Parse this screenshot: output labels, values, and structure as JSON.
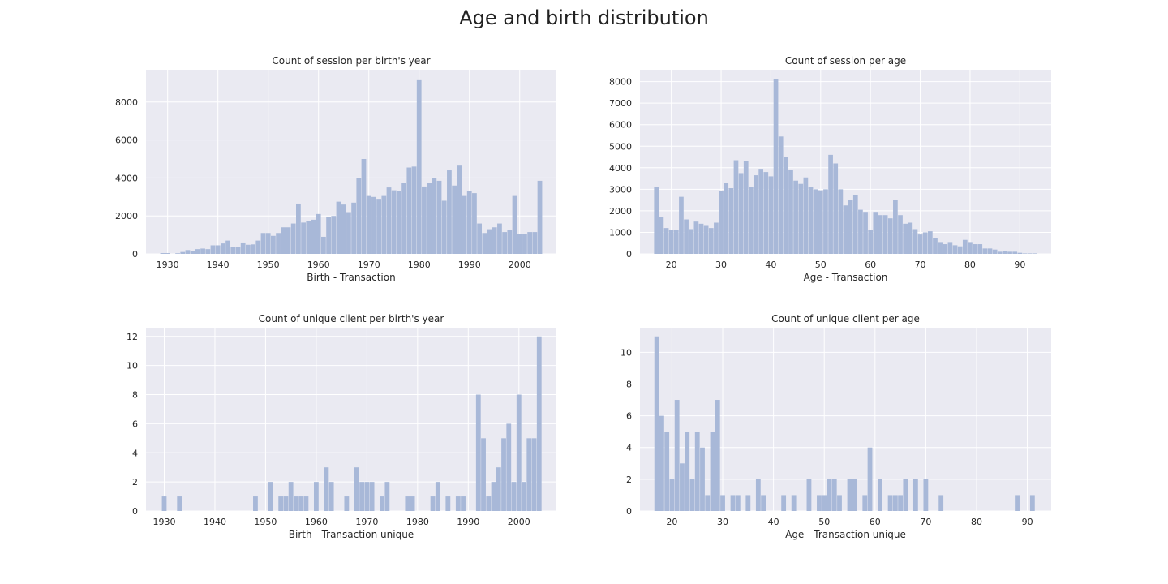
{
  "figure_title": "Age and birth distribution",
  "colors": {
    "bar": "#a8b8d8",
    "plot_bg": "#eaeaf2",
    "grid": "#ffffff",
    "text": "#262626"
  },
  "chart_data": [
    {
      "type": "bar",
      "title": "Count of session per birth's year",
      "xlabel": "Birth - Transaction",
      "ylabel": "",
      "xlim": [
        1925.7,
        2007.3
      ],
      "ylim": [
        0,
        9700
      ],
      "xticks": [
        1930,
        1940,
        1950,
        1960,
        1970,
        1980,
        1990,
        2000
      ],
      "yticks": [
        0,
        2000,
        4000,
        6000,
        8000
      ],
      "grid": true,
      "x": [
        1929,
        1930,
        1931,
        1932,
        1933,
        1934,
        1935,
        1936,
        1937,
        1938,
        1939,
        1940,
        1941,
        1942,
        1943,
        1944,
        1945,
        1946,
        1947,
        1948,
        1949,
        1950,
        1951,
        1952,
        1953,
        1954,
        1955,
        1956,
        1957,
        1958,
        1959,
        1960,
        1961,
        1962,
        1963,
        1964,
        1965,
        1966,
        1967,
        1968,
        1969,
        1970,
        1971,
        1972,
        1973,
        1974,
        1975,
        1976,
        1977,
        1978,
        1979,
        1980,
        1981,
        1982,
        1983,
        1984,
        1985,
        1986,
        1987,
        1988,
        1989,
        1990,
        1991,
        1992,
        1993,
        1994,
        1995,
        1996,
        1997,
        1998,
        1999,
        2000,
        2001,
        2002,
        2003,
        2004
      ],
      "values": [
        40,
        40,
        0,
        30,
        100,
        200,
        150,
        250,
        280,
        250,
        450,
        450,
        550,
        700,
        350,
        350,
        600,
        480,
        500,
        700,
        1100,
        1100,
        950,
        1100,
        1400,
        1400,
        1600,
        2650,
        1650,
        1750,
        1800,
        2100,
        900,
        1950,
        2000,
        2750,
        2600,
        2200,
        2700,
        4000,
        5000,
        3050,
        3000,
        2900,
        3050,
        3500,
        3350,
        3300,
        3750,
        4550,
        4600,
        9150,
        3550,
        3750,
        4000,
        3850,
        2800,
        4400,
        3600,
        4650,
        3050,
        3300,
        3200,
        1600,
        1100,
        1300,
        1400,
        1600,
        1150,
        1250,
        3050,
        1050,
        1050,
        1150,
        1150,
        3850
      ]
    },
    {
      "type": "bar",
      "title": "Count of session per age",
      "xlabel": "Age - Transaction",
      "ylabel": "",
      "xlim": [
        13.7,
        96.3
      ],
      "ylim": [
        0,
        8550
      ],
      "xticks": [
        20,
        30,
        40,
        50,
        60,
        70,
        80,
        90
      ],
      "yticks": [
        0,
        1000,
        2000,
        3000,
        4000,
        5000,
        6000,
        7000,
        8000
      ],
      "grid": true,
      "x": [
        17,
        18,
        19,
        20,
        21,
        22,
        23,
        24,
        25,
        26,
        27,
        28,
        29,
        30,
        31,
        32,
        33,
        34,
        35,
        36,
        37,
        38,
        39,
        40,
        41,
        42,
        43,
        44,
        45,
        46,
        47,
        48,
        49,
        50,
        51,
        52,
        53,
        54,
        55,
        56,
        57,
        58,
        59,
        60,
        61,
        62,
        63,
        64,
        65,
        66,
        67,
        68,
        69,
        70,
        71,
        72,
        73,
        74,
        75,
        76,
        77,
        78,
        79,
        80,
        81,
        82,
        83,
        84,
        85,
        86,
        87,
        88,
        89,
        90,
        91,
        92,
        93
      ],
      "values": [
        3100,
        1700,
        1200,
        1100,
        1100,
        2650,
        1600,
        1150,
        1500,
        1400,
        1300,
        1200,
        1450,
        2900,
        3300,
        3050,
        4350,
        3750,
        4300,
        3100,
        3650,
        3950,
        3800,
        3600,
        8100,
        5450,
        4500,
        3900,
        3400,
        3250,
        3550,
        3100,
        3000,
        2950,
        3000,
        4600,
        4200,
        3000,
        2250,
        2500,
        2750,
        2050,
        1950,
        1100,
        1950,
        1800,
        1800,
        1650,
        2500,
        1800,
        1400,
        1450,
        1150,
        900,
        1000,
        1050,
        750,
        550,
        450,
        550,
        400,
        350,
        650,
        550,
        450,
        450,
        250,
        250,
        200,
        100,
        150,
        100,
        100,
        50,
        20,
        20,
        20
      ]
    },
    {
      "type": "bar",
      "title": "Count of unique client per birth's year",
      "xlabel": "Birth - Transaction unique",
      "ylabel": "",
      "xlim": [
        1926.4,
        2007.4
      ],
      "ylim": [
        0,
        12.6
      ],
      "xticks": [
        1930,
        1940,
        1950,
        1960,
        1970,
        1980,
        1990,
        2000
      ],
      "yticks": [
        0,
        2,
        4,
        6,
        8,
        10,
        12
      ],
      "grid": true,
      "x": [
        1930,
        1933,
        1948,
        1951,
        1953,
        1954,
        1955,
        1956,
        1957,
        1958,
        1960,
        1962,
        1963,
        1966,
        1968,
        1969,
        1970,
        1971,
        1973,
        1974,
        1978,
        1979,
        1983,
        1984,
        1986,
        1988,
        1989,
        1992,
        1993,
        1994,
        1995,
        1996,
        1997,
        1998,
        1999,
        2000,
        2001,
        2002,
        2003,
        2004
      ],
      "values": [
        1,
        1,
        1,
        2,
        1,
        1,
        2,
        1,
        1,
        1,
        2,
        3,
        2,
        1,
        3,
        2,
        2,
        2,
        1,
        2,
        1,
        1,
        1,
        2,
        1,
        1,
        1,
        8,
        5,
        1,
        2,
        3,
        5,
        6,
        2,
        8,
        2,
        5,
        5,
        12
      ]
    },
    {
      "type": "bar",
      "title": "Count of unique client per age",
      "xlabel": "Age - Transaction unique",
      "ylabel": "",
      "xlim": [
        13.7,
        94.7
      ],
      "ylim": [
        0,
        11.55
      ],
      "xticks": [
        20,
        30,
        40,
        50,
        60,
        70,
        80,
        90
      ],
      "yticks": [
        0,
        2,
        4,
        6,
        8,
        10
      ],
      "grid": true,
      "x": [
        17,
        18,
        19,
        20,
        21,
        22,
        23,
        24,
        25,
        26,
        27,
        28,
        29,
        30,
        32,
        33,
        35,
        37,
        38,
        42,
        44,
        47,
        49,
        50,
        51,
        52,
        53,
        55,
        56,
        58,
        59,
        61,
        63,
        64,
        65,
        66,
        68,
        70,
        73,
        88,
        91
      ],
      "values": [
        11,
        6,
        5,
        2,
        7,
        3,
        5,
        2,
        5,
        4,
        1,
        5,
        7,
        1,
        1,
        1,
        1,
        2,
        1,
        1,
        1,
        2,
        1,
        1,
        2,
        2,
        1,
        2,
        2,
        1,
        4,
        2,
        1,
        1,
        1,
        2,
        2,
        2,
        1,
        1,
        1
      ]
    }
  ]
}
